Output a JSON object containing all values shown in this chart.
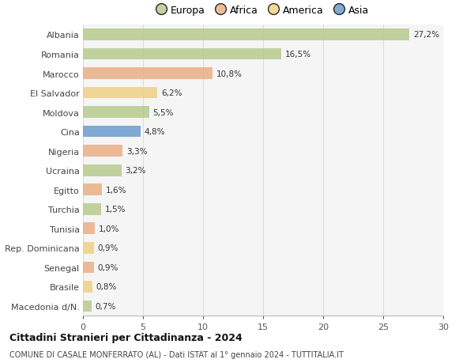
{
  "categories": [
    "Albania",
    "Romania",
    "Marocco",
    "El Salvador",
    "Moldova",
    "Cina",
    "Nigeria",
    "Ucraina",
    "Egitto",
    "Turchia",
    "Tunisia",
    "Rep. Dominicana",
    "Senegal",
    "Brasile",
    "Macedonia d/N."
  ],
  "values": [
    27.2,
    16.5,
    10.8,
    6.2,
    5.5,
    4.8,
    3.3,
    3.2,
    1.6,
    1.5,
    1.0,
    0.9,
    0.9,
    0.8,
    0.7
  ],
  "labels": [
    "27,2%",
    "16,5%",
    "10,8%",
    "6,2%",
    "5,5%",
    "4,8%",
    "3,3%",
    "3,2%",
    "1,6%",
    "1,5%",
    "1,0%",
    "0,9%",
    "0,9%",
    "0,8%",
    "0,7%"
  ],
  "continents": [
    "Europa",
    "Europa",
    "Africa",
    "America",
    "Europa",
    "Asia",
    "Africa",
    "Europa",
    "Africa",
    "Europa",
    "Africa",
    "America",
    "Africa",
    "America",
    "Europa"
  ],
  "colors": {
    "Europa": "#b5c98a",
    "Africa": "#e8ad82",
    "America": "#f0d080",
    "Asia": "#6699cc"
  },
  "xlim": [
    0,
    30
  ],
  "xticks": [
    0,
    5,
    10,
    15,
    20,
    25,
    30
  ],
  "title": "Cittadini Stranieri per Cittadinanza - 2024",
  "subtitle": "COMUNE DI CASALE MONFERRATO (AL) - Dati ISTAT al 1° gennaio 2024 - TUTTITALIA.IT",
  "background_color": "#ffffff",
  "plot_bg_color": "#f5f5f5",
  "grid_color": "#dddddd",
  "bar_alpha": 0.82,
  "legend_order": [
    "Europa",
    "Africa",
    "America",
    "Asia"
  ]
}
